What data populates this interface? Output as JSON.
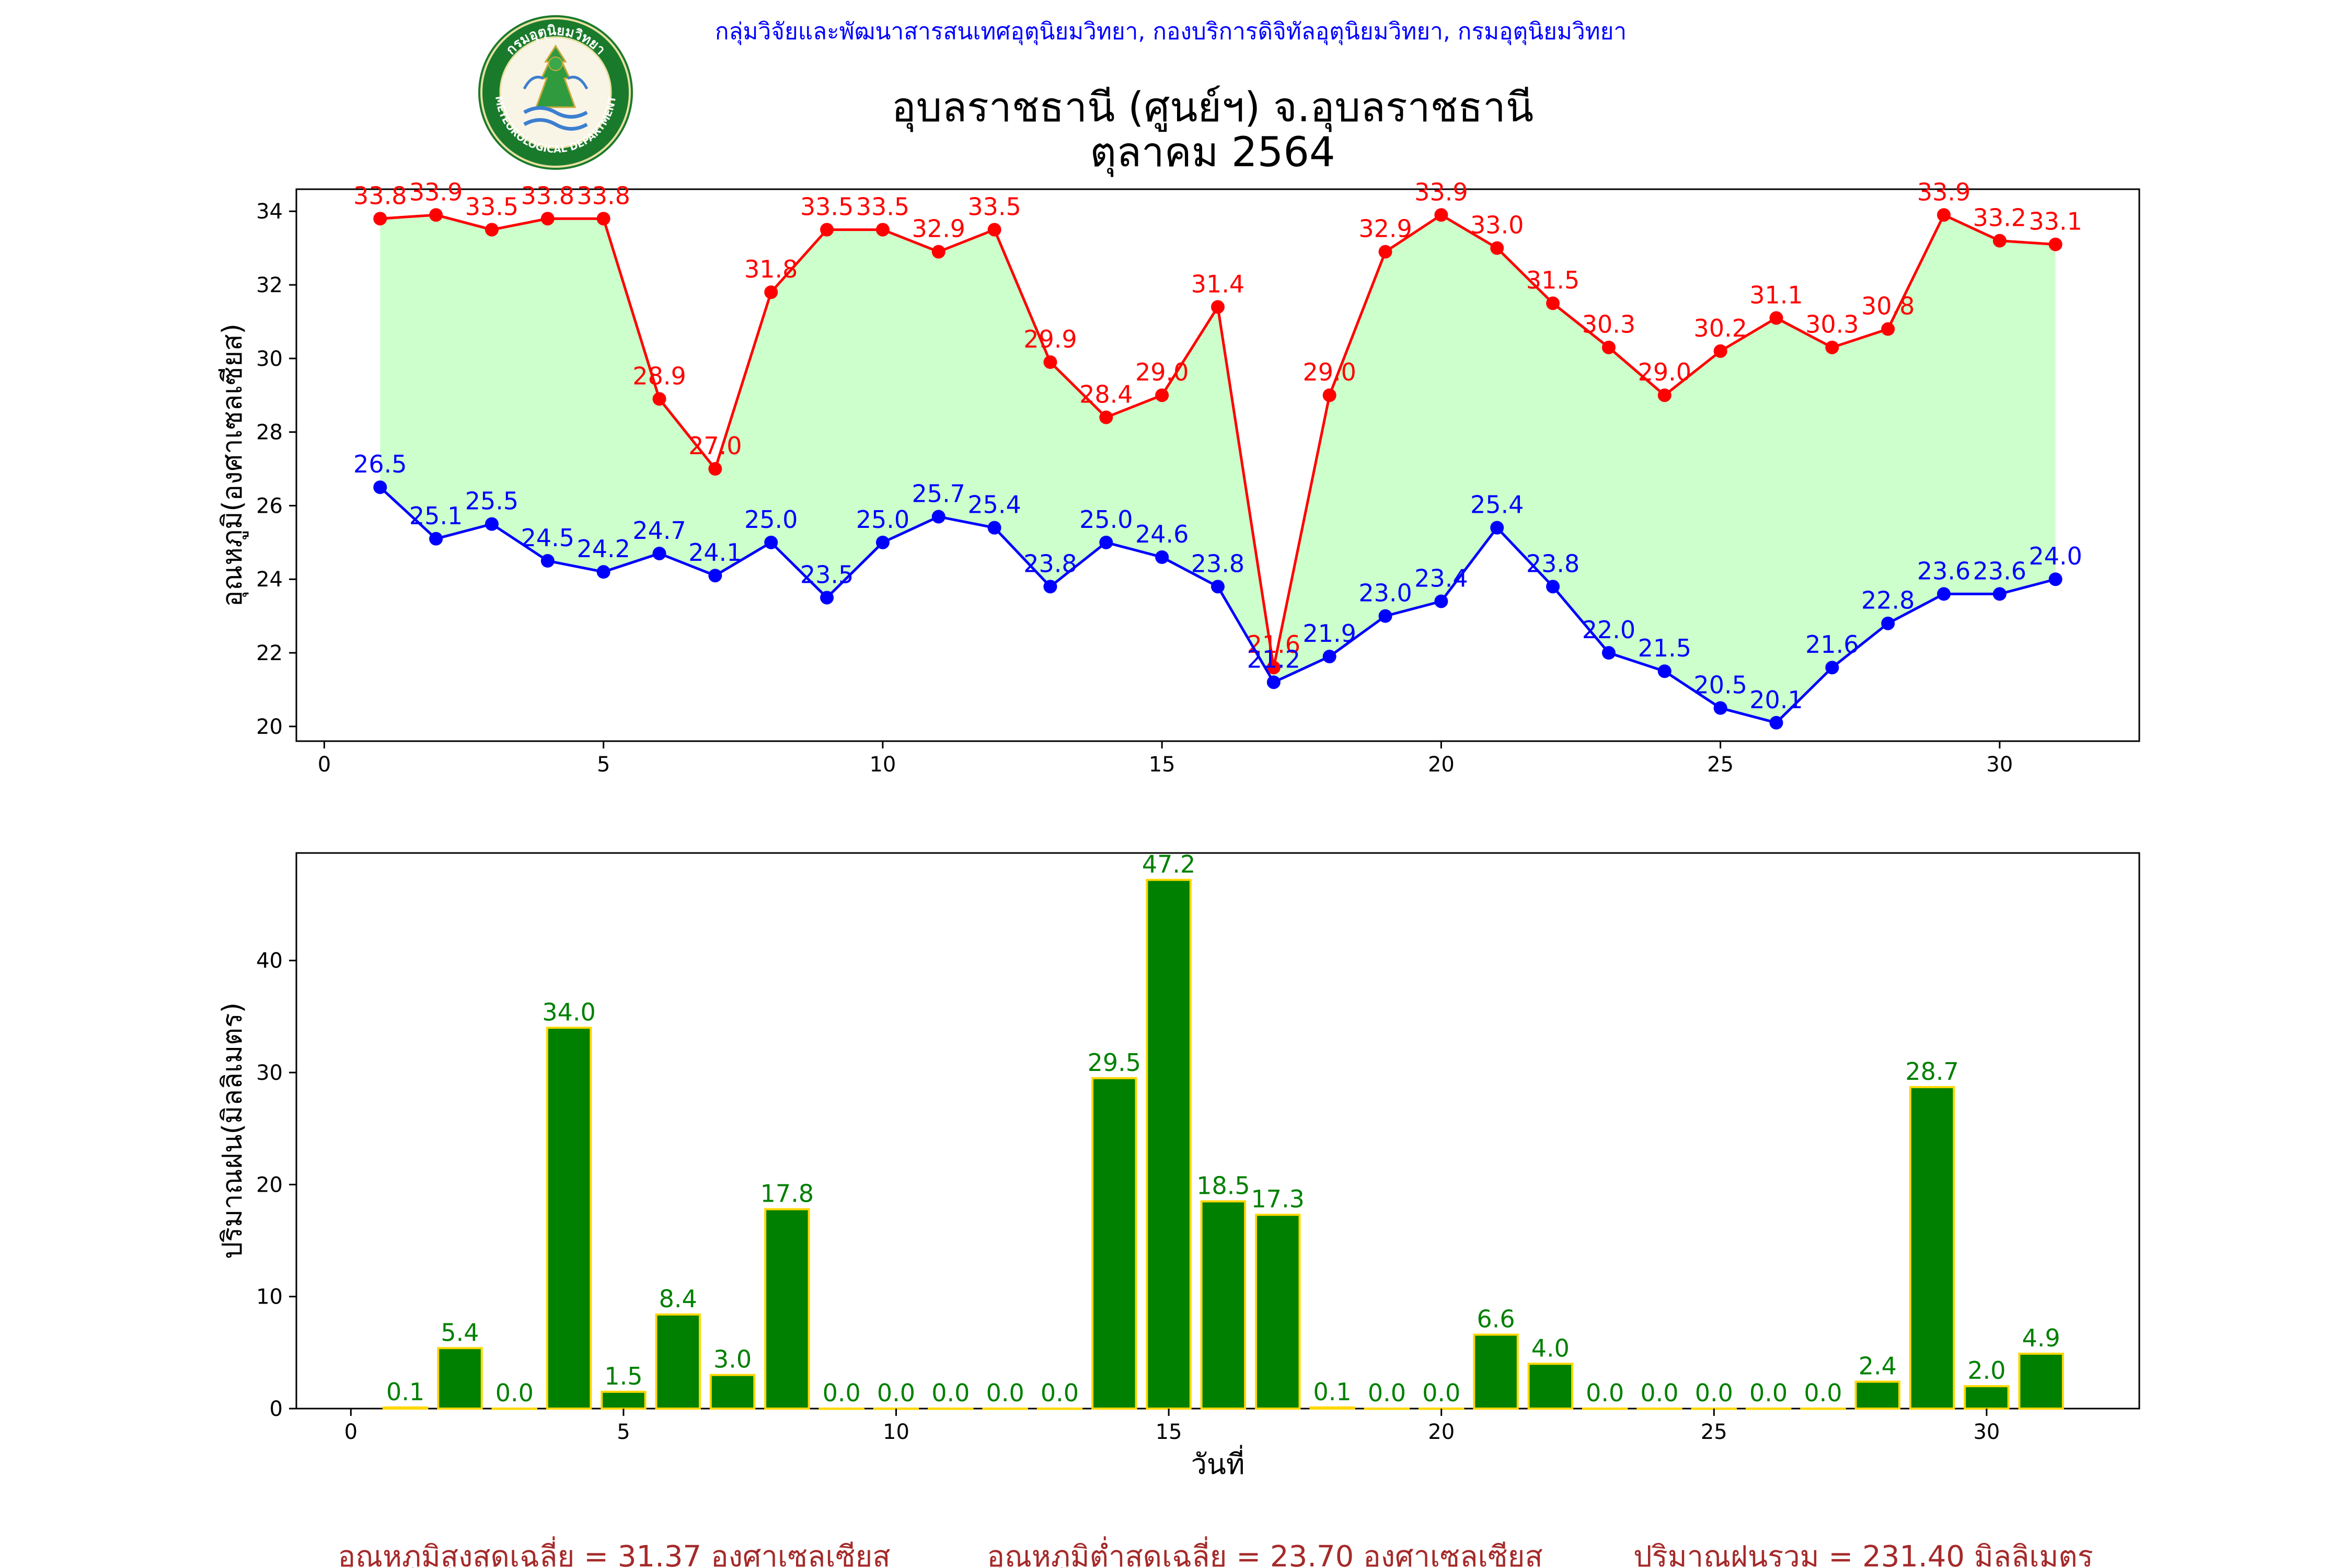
{
  "header": {
    "org_line": "กลุ่มวิจัยและพัฒนาสารสนเทศอุตุนิยมวิทยา, กองบริการดิจิทัลอุตุนิยมวิทยา, กรมอุตุนิยมวิทยา",
    "title_line1": "อุบลราชธานี (ศูนย์ฯ) จ.อุบลราชธานี",
    "title_line2": "ตุลาคม 2564",
    "logo_text_top": "กรมอุตุนิยมวิทยา",
    "logo_text_bottom": "METEOROLOGICAL DEPARTMENT"
  },
  "footer": {
    "avg_max": "อุณหภูมิสูงสุดเฉลี่ย = 31.37 องศาเซลเซียส",
    "avg_min": "อุณหภูมิต่ำสุดเฉลี่ย = 23.70 องศาเซลเซียส",
    "rain_total": "ปริมาณฝนรวม = 231.40 มิลลิเมตร"
  },
  "colors": {
    "max_line": "#ff0000",
    "min_line": "#0000ff",
    "fill": "#ccffcc",
    "bar_fill": "#008000",
    "bar_edge": "#ffd700",
    "bar_label": "#008000",
    "header_blue": "#0000ff",
    "footer_text": "#a52a2a"
  },
  "chart_data": [
    {
      "type": "line",
      "ylabel": "อุณหภูมิ(องศาเซลเซียส)",
      "xlabel": "",
      "xlim": [
        -0.5,
        32.5
      ],
      "ylim": [
        19.6,
        34.6
      ],
      "xticks": [
        0,
        5,
        10,
        15,
        20,
        25,
        30
      ],
      "yticks": [
        20,
        22,
        24,
        26,
        28,
        30,
        32,
        34
      ],
      "fill_between": true,
      "x": [
        1,
        2,
        3,
        4,
        5,
        6,
        7,
        8,
        9,
        10,
        11,
        12,
        13,
        14,
        15,
        16,
        17,
        18,
        19,
        20,
        21,
        22,
        23,
        24,
        25,
        26,
        27,
        28,
        29,
        30,
        31
      ],
      "series": [
        {
          "name": "max",
          "values": [
            33.8,
            33.9,
            33.5,
            33.8,
            33.8,
            28.9,
            27.0,
            31.8,
            33.5,
            33.5,
            32.9,
            33.5,
            29.9,
            28.4,
            29.0,
            31.4,
            21.6,
            29.0,
            32.9,
            33.9,
            33.0,
            31.5,
            30.3,
            29.0,
            30.2,
            31.1,
            30.3,
            30.8,
            33.9,
            33.2,
            33.1
          ]
        },
        {
          "name": "min",
          "values": [
            26.5,
            25.1,
            25.5,
            24.5,
            24.2,
            24.7,
            24.1,
            25.0,
            23.5,
            25.0,
            25.7,
            25.4,
            23.8,
            25.0,
            24.6,
            23.8,
            21.2,
            21.9,
            23.0,
            23.4,
            25.4,
            23.8,
            22.0,
            21.5,
            20.5,
            20.1,
            21.6,
            22.8,
            23.6,
            23.6,
            24.0
          ]
        }
      ]
    },
    {
      "type": "bar",
      "ylabel": "ปริมาณฝน(มิลลิเมตร)",
      "xlabel": "วันที่",
      "xlim": [
        -1.0,
        32.8
      ],
      "ylim": [
        0,
        49.6
      ],
      "xticks": [
        0,
        5,
        10,
        15,
        20,
        25,
        30
      ],
      "yticks": [
        0,
        10,
        20,
        30,
        40
      ],
      "categories": [
        1,
        2,
        3,
        4,
        5,
        6,
        7,
        8,
        9,
        10,
        11,
        12,
        13,
        14,
        15,
        16,
        17,
        18,
        19,
        20,
        21,
        22,
        23,
        24,
        25,
        26,
        27,
        28,
        29,
        30,
        31
      ],
      "values": [
        0.1,
        5.4,
        0.0,
        34.0,
        1.5,
        8.4,
        3.0,
        17.8,
        0.0,
        0.0,
        0.0,
        0.0,
        0.0,
        29.5,
        47.2,
        18.5,
        17.3,
        0.1,
        0.0,
        0.0,
        6.6,
        4.0,
        0.0,
        0.0,
        0.0,
        0.0,
        0.0,
        2.4,
        28.7,
        2.0,
        4.9
      ]
    }
  ]
}
